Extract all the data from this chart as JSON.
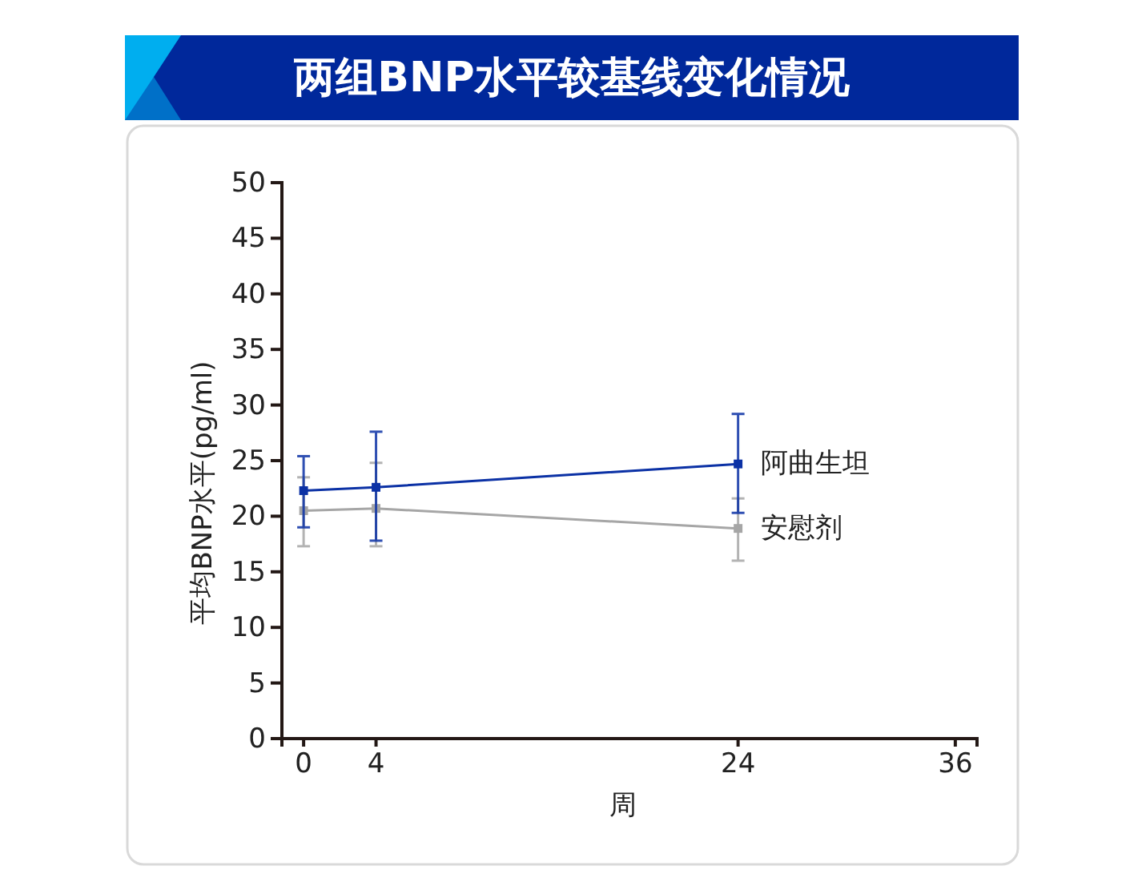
{
  "chart_data": {
    "type": "line",
    "title": "两组BNP水平较基线变化情况",
    "xlabel": "周",
    "ylabel": "平均BNP水平(pg/ml)",
    "x": [
      0,
      4,
      24
    ],
    "xlim": [
      -1.2,
      37.2
    ],
    "xticks": [
      0,
      4,
      24,
      36
    ],
    "ylim": [
      0,
      50
    ],
    "yticks": [
      0,
      5,
      10,
      15,
      20,
      25,
      30,
      35,
      40,
      45,
      50
    ],
    "marker": "square",
    "series": [
      {
        "name": "阿曲生坦",
        "color": "#0b31a5",
        "values": [
          22.3,
          22.6,
          24.7
        ],
        "errors": [
          [
            19.0,
            25.4
          ],
          [
            17.8,
            27.6
          ],
          [
            20.3,
            29.2
          ]
        ]
      },
      {
        "name": "安慰剂",
        "color": "#a6a6a6",
        "values": [
          20.5,
          20.7,
          18.9
        ],
        "errors": [
          [
            17.3,
            23.5
          ],
          [
            17.3,
            24.8
          ],
          [
            16.0,
            21.6
          ]
        ]
      }
    ]
  }
}
